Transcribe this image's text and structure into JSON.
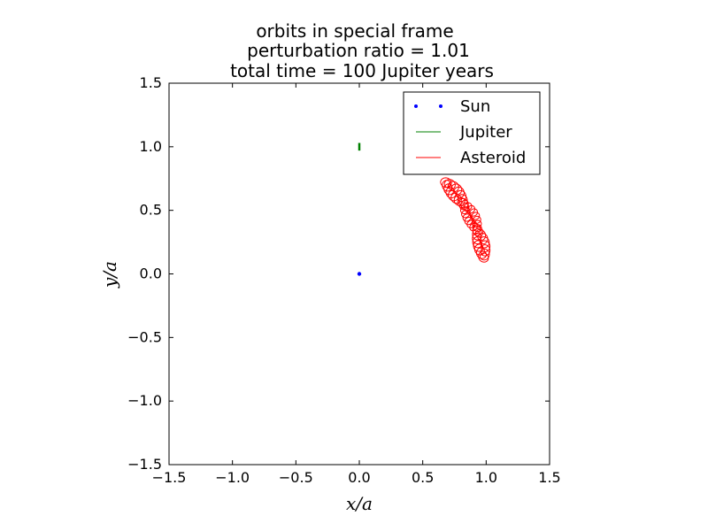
{
  "chart_data": {
    "type": "line",
    "title_lines": [
      "orbits in special frame",
      "perturbation ratio = 1.01",
      "total time = 100 Jupiter years"
    ],
    "xlabel": "x/a",
    "ylabel": "y/a",
    "xlim": [
      -1.5,
      1.5
    ],
    "ylim": [
      -1.5,
      1.5
    ],
    "xticks": [
      -1.5,
      -1.0,
      -0.5,
      0.0,
      0.5,
      1.0,
      1.5
    ],
    "yticks": [
      -1.5,
      -1.0,
      -0.5,
      0.0,
      0.5,
      1.0,
      1.5
    ],
    "xtick_labels": [
      "−1.5",
      "−1.0",
      "−0.5",
      "0.0",
      "0.5",
      "1.0",
      "1.5"
    ],
    "ytick_labels": [
      "−1.5",
      "−1.0",
      "−0.5",
      "0.0",
      "0.5",
      "1.0",
      "1.5"
    ],
    "grid": false,
    "legend_position": "top-right",
    "series": [
      {
        "name": "Sun",
        "style": "dots",
        "color": "#0000ff",
        "x": [
          0.0
        ],
        "y": [
          0.0
        ]
      },
      {
        "name": "Jupiter",
        "style": "line",
        "color": "#008000",
        "x": [
          0.0,
          0.0
        ],
        "y": [
          0.97,
          1.03
        ]
      },
      {
        "name": "Asteroid",
        "style": "line",
        "color": "#ff0000",
        "arc": {
          "r_min": 0.96,
          "r_max": 1.02,
          "angle_min_deg": 7,
          "angle_max_deg": 47,
          "loop_radius": 0.035,
          "loops": 45
        }
      }
    ]
  }
}
